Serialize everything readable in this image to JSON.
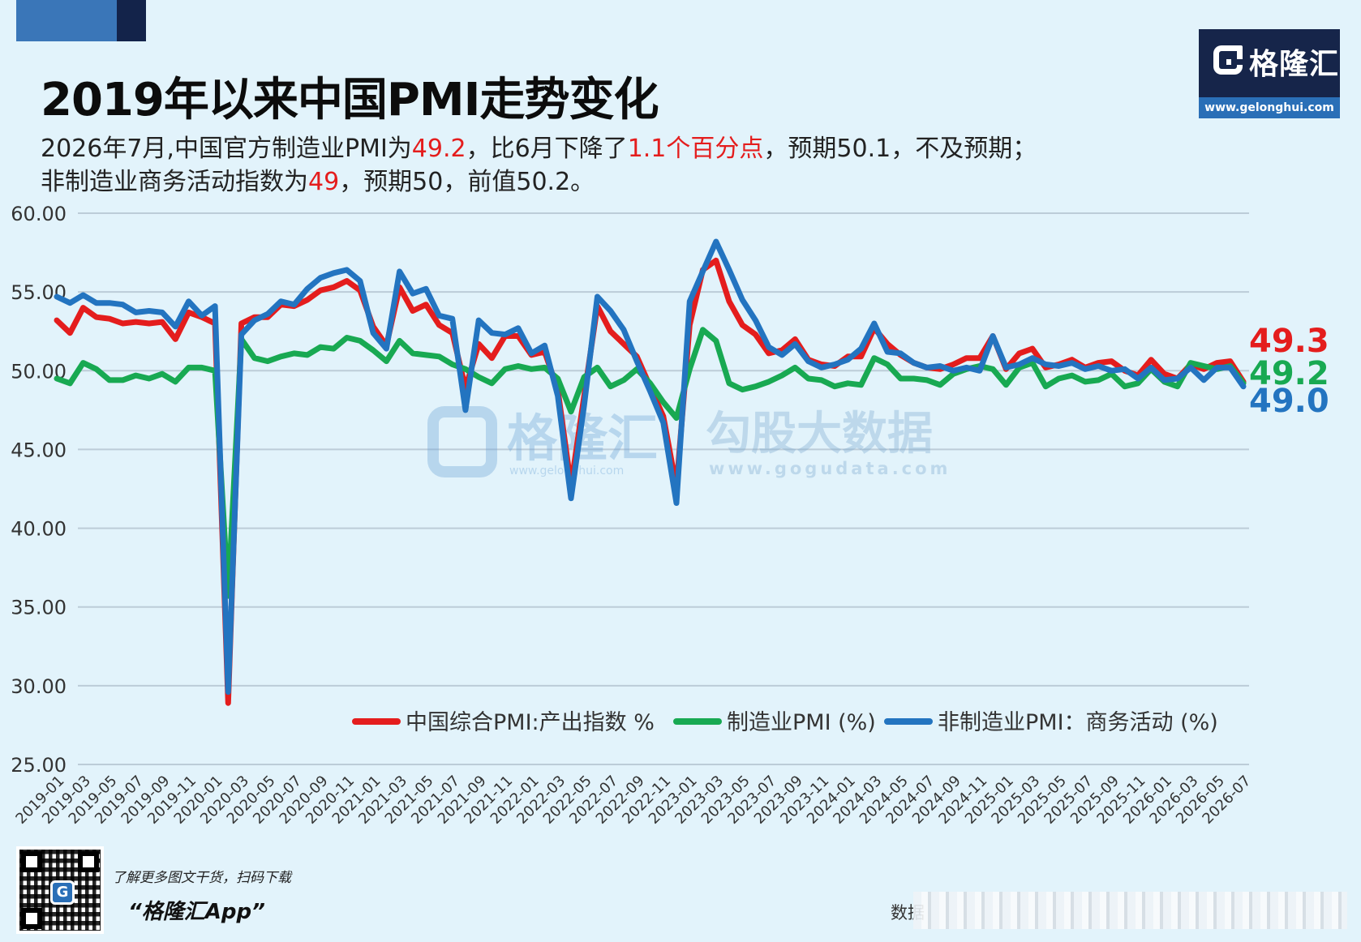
{
  "title": "2019年以来中国PMI走势变化",
  "subtitle": {
    "line1_a": "2026年7月,中国官方制造业PMI为",
    "line1_b": "49.2",
    "line1_c": "，比6月下降了",
    "line1_d": "1.1个百分点",
    "line1_e": "，预期50.1，不及预期；",
    "line2_a": "非制造业商务活动指数为",
    "line2_b": "49",
    "line2_c": "，预期50，前值50.2。"
  },
  "logo": {
    "name": "格隆汇",
    "url": "www.gelonghui.com"
  },
  "watermark": {
    "left_name": "格隆汇",
    "left_url": "www.gelonghui.com",
    "right_name": "勾股大数据",
    "right_url": "www.gogudata.com"
  },
  "footer": {
    "qr_icon": "G",
    "promo_text": "了解更多图文干货，扫码下载",
    "app_name": "“格隆汇App”",
    "source_label": "数据"
  },
  "colors": {
    "composite": "#e41d1d",
    "manufacturing": "#18a952",
    "non_manufacturing": "#2374c0",
    "grid": "#bcccd8"
  },
  "chart_data": {
    "type": "line",
    "ylim": [
      25,
      60
    ],
    "yticks": [
      "25.00",
      "30.00",
      "35.00",
      "40.00",
      "45.00",
      "50.00",
      "55.00",
      "60.00"
    ],
    "grid": "horizontal",
    "legend_position": "bottom-right",
    "x": [
      "2019-01",
      "2019-02",
      "2019-03",
      "2019-04",
      "2019-05",
      "2019-06",
      "2019-07",
      "2019-08",
      "2019-09",
      "2019-10",
      "2019-11",
      "2019-12",
      "2020-01",
      "2020-02",
      "2020-03",
      "2020-04",
      "2020-05",
      "2020-06",
      "2020-07",
      "2020-08",
      "2020-09",
      "2020-10",
      "2020-11",
      "2020-12",
      "2021-01",
      "2021-02",
      "2021-03",
      "2021-04",
      "2021-05",
      "2021-06",
      "2021-07",
      "2021-08",
      "2021-09",
      "2021-10",
      "2021-11",
      "2021-12",
      "2022-01",
      "2022-02",
      "2022-03",
      "2022-04",
      "2022-05",
      "2022-06",
      "2022-07",
      "2022-08",
      "2022-09",
      "2022-10",
      "2022-11",
      "2022-12",
      "2023-01",
      "2023-02",
      "2023-03",
      "2023-04",
      "2023-05",
      "2023-06",
      "2023-07",
      "2023-08",
      "2023-09",
      "2023-10",
      "2023-11",
      "2023-12",
      "2024-01",
      "2024-02",
      "2024-03",
      "2024-04",
      "2024-05",
      "2024-06",
      "2024-07",
      "2024-08",
      "2024-09",
      "2024-10",
      "2024-11",
      "2024-12",
      "2025-01",
      "2025-02",
      "2025-03",
      "2025-04",
      "2025-05",
      "2025-06",
      "2025-07",
      "2025-08",
      "2025-09",
      "2025-10",
      "2025-11",
      "2025-12",
      "2026-01",
      "2026-02",
      "2026-03",
      "2026-04",
      "2026-05",
      "2026-06",
      "2026-07"
    ],
    "xticks": [
      "2019-01",
      "2019-03",
      "2019-05",
      "2019-07",
      "2019-09",
      "2019-11",
      "2020-01",
      "2020-03",
      "2020-05",
      "2020-07",
      "2020-09",
      "2020-11",
      "2021-01",
      "2021-03",
      "2021-05",
      "2021-07",
      "2021-09",
      "2021-11",
      "2022-01",
      "2022-03",
      "2022-05",
      "2022-07",
      "2022-09",
      "2022-11",
      "2023-01",
      "2023-03",
      "2023-05",
      "2023-07",
      "2023-09",
      "2023-11",
      "2024-01",
      "2024-03",
      "2024-05",
      "2024-07",
      "2024-09",
      "2024-11",
      "2025-01",
      "2025-03",
      "2025-05",
      "2025-07",
      "2025-09",
      "2025-11",
      "2026-01",
      "2026-03",
      "2026-05",
      "2026-07"
    ],
    "series": [
      {
        "name": "中国综合PMI:产出指数 %",
        "color": "#e41d1d",
        "end_label": "49.3",
        "values": [
          53.2,
          52.4,
          54.0,
          53.4,
          53.3,
          53.0,
          53.1,
          53.0,
          53.1,
          52.0,
          53.7,
          53.4,
          53.0,
          28.9,
          53.0,
          53.4,
          53.4,
          54.2,
          54.1,
          54.5,
          55.1,
          55.3,
          55.7,
          55.1,
          52.8,
          51.6,
          55.3,
          53.8,
          54.2,
          52.9,
          52.4,
          48.9,
          51.7,
          50.8,
          52.2,
          52.2,
          51.0,
          51.2,
          48.8,
          42.7,
          48.4,
          54.1,
          52.5,
          51.7,
          50.9,
          49.0,
          47.1,
          42.6,
          52.9,
          56.4,
          57.0,
          54.4,
          52.9,
          52.3,
          51.1,
          51.3,
          52.0,
          50.7,
          50.4,
          50.3,
          50.9,
          50.9,
          52.7,
          51.7,
          51.0,
          50.5,
          50.2,
          50.1,
          50.4,
          50.8,
          50.8,
          52.2,
          50.1,
          51.1,
          51.4,
          50.2,
          50.4,
          50.7,
          50.2,
          50.5,
          50.6,
          50.0,
          49.7,
          50.7,
          49.8,
          49.5,
          50.4,
          50.1,
          50.5,
          50.6,
          49.3
        ]
      },
      {
        "name": "制造业PMI (%)",
        "color": "#18a952",
        "end_label": "49.2",
        "values": [
          49.5,
          49.2,
          50.5,
          50.1,
          49.4,
          49.4,
          49.7,
          49.5,
          49.8,
          49.3,
          50.2,
          50.2,
          50.0,
          35.7,
          52.0,
          50.8,
          50.6,
          50.9,
          51.1,
          51.0,
          51.5,
          51.4,
          52.1,
          51.9,
          51.3,
          50.6,
          51.9,
          51.1,
          51.0,
          50.9,
          50.4,
          50.1,
          49.6,
          49.2,
          50.1,
          50.3,
          50.1,
          50.2,
          49.5,
          47.4,
          49.6,
          50.2,
          49.0,
          49.4,
          50.1,
          49.2,
          48.0,
          47.0,
          50.1,
          52.6,
          51.9,
          49.2,
          48.8,
          49.0,
          49.3,
          49.7,
          50.2,
          49.5,
          49.4,
          49.0,
          49.2,
          49.1,
          50.8,
          50.4,
          49.5,
          49.5,
          49.4,
          49.1,
          49.8,
          50.1,
          50.3,
          50.1,
          49.1,
          50.2,
          50.5,
          49.0,
          49.5,
          49.7,
          49.3,
          49.4,
          49.8,
          49.0,
          49.2,
          50.1,
          49.3,
          49.0,
          50.5,
          50.3,
          50.1,
          50.3,
          49.2
        ]
      },
      {
        "name": "非制造业PMI：商务活动 (%)",
        "color": "#2374c0",
        "end_label": "49.0",
        "values": [
          54.7,
          54.3,
          54.8,
          54.3,
          54.3,
          54.2,
          53.7,
          53.8,
          53.7,
          52.8,
          54.4,
          53.5,
          54.1,
          29.6,
          52.3,
          53.2,
          53.6,
          54.4,
          54.2,
          55.2,
          55.9,
          56.2,
          56.4,
          55.7,
          52.4,
          51.4,
          56.3,
          54.9,
          55.2,
          53.5,
          53.3,
          47.5,
          53.2,
          52.4,
          52.3,
          52.7,
          51.1,
          51.6,
          48.4,
          41.9,
          47.8,
          54.7,
          53.8,
          52.6,
          50.6,
          48.7,
          46.7,
          41.6,
          54.4,
          56.3,
          58.2,
          56.4,
          54.5,
          53.2,
          51.5,
          51.0,
          51.7,
          50.6,
          50.2,
          50.4,
          50.7,
          51.4,
          53.0,
          51.2,
          51.1,
          50.5,
          50.2,
          50.3,
          50.0,
          50.2,
          50.0,
          52.2,
          50.2,
          50.4,
          50.8,
          50.4,
          50.3,
          50.5,
          50.1,
          50.3,
          50.0,
          50.1,
          49.5,
          50.2,
          49.4,
          49.5,
          50.2,
          49.4,
          50.2,
          50.2,
          49.0
        ]
      }
    ]
  }
}
